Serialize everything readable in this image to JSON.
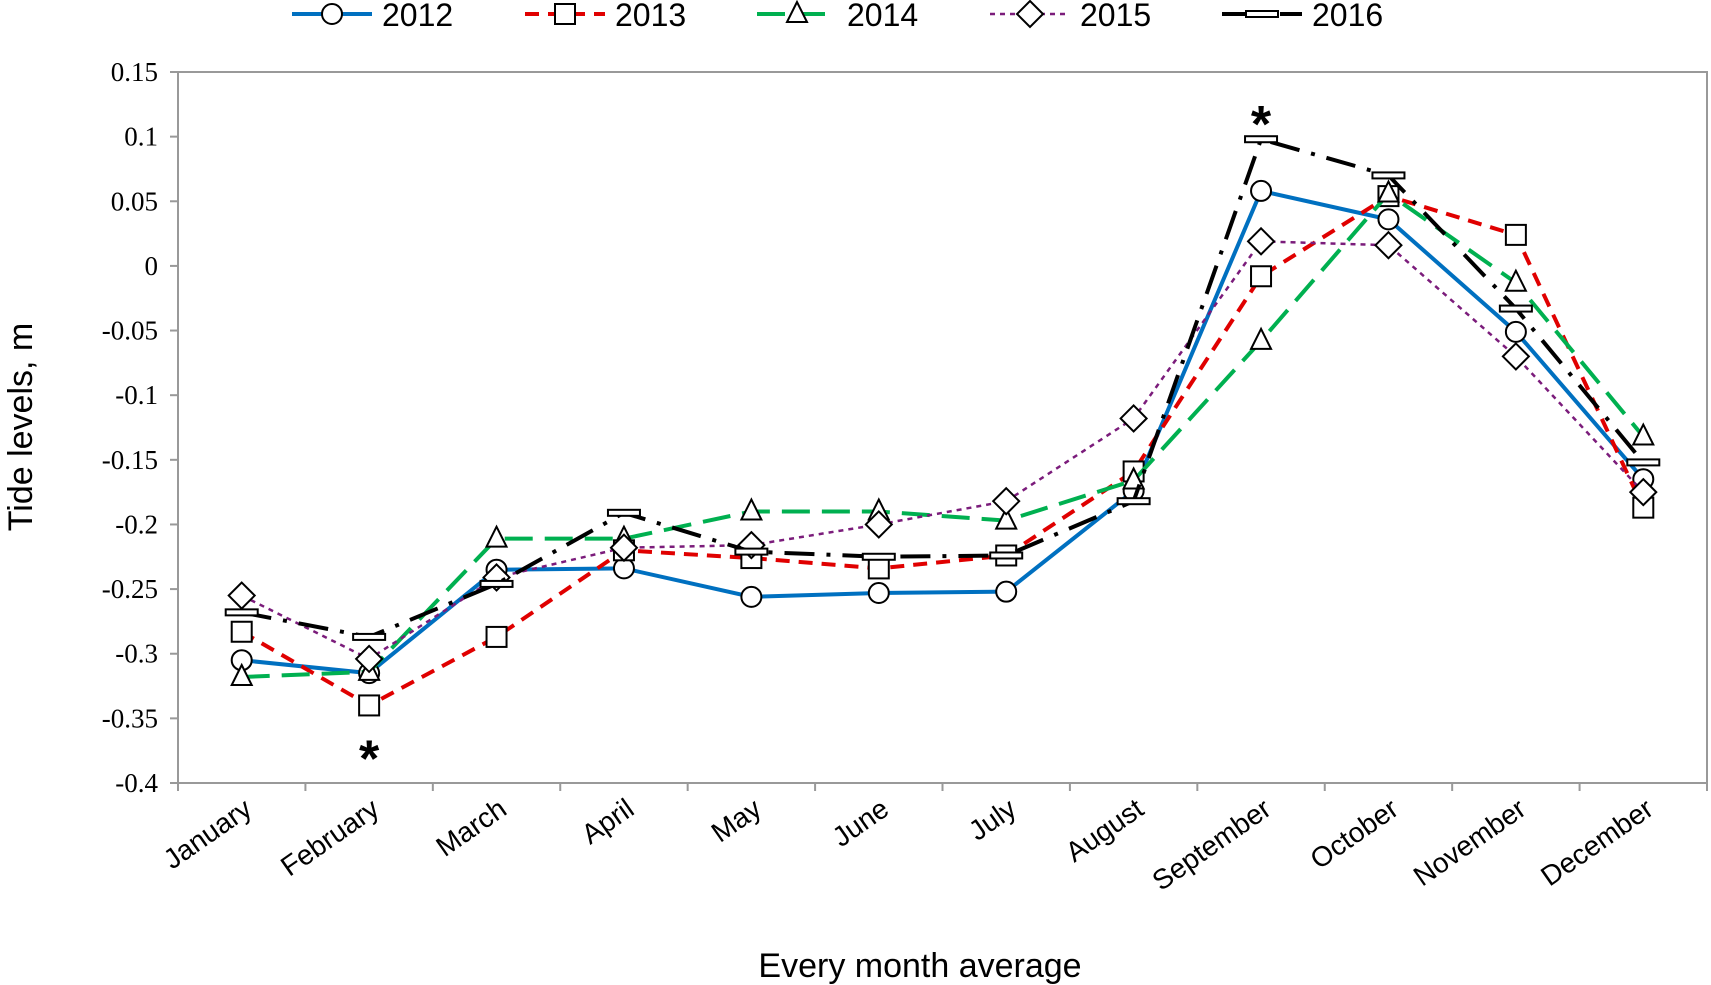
{
  "chart_data": {
    "type": "line",
    "title": "",
    "xlabel": "Every month average",
    "ylabel": "Tide levels, m",
    "ylim": [
      -0.4,
      0.15
    ],
    "yticks": [
      0.15,
      0.1,
      0.05,
      0,
      -0.05,
      -0.1,
      -0.15,
      -0.2,
      -0.25,
      -0.3,
      -0.35,
      -0.4
    ],
    "ytick_labels": [
      "0.15",
      "0.1",
      "0.05",
      "0",
      "-0.05",
      "-0.1",
      "-0.15",
      "-0.2",
      "-0.25",
      "-0.3",
      "-0.35",
      "-0.4"
    ],
    "grid": false,
    "legend_position": "top",
    "categories": [
      "January",
      "February",
      "March",
      "April",
      "May",
      "June",
      "July",
      "August",
      "September",
      "October",
      "November",
      "December"
    ],
    "series": [
      {
        "name": "2012",
        "color": "#0070C0",
        "marker": "circle",
        "dash": "solid",
        "values": [
          -0.305,
          -0.315,
          -0.235,
          -0.234,
          -0.256,
          -0.253,
          -0.252,
          -0.174,
          0.058,
          0.036,
          -0.051,
          -0.165
        ]
      },
      {
        "name": "2013",
        "color": "#E00000",
        "marker": "square",
        "dash": "dash",
        "values": [
          -0.283,
          -0.34,
          -0.287,
          -0.22,
          -0.226,
          -0.234,
          -0.224,
          -0.159,
          -0.008,
          0.054,
          0.024,
          -0.187
        ]
      },
      {
        "name": "2014",
        "color": "#00B050",
        "marker": "triangle",
        "dash": "longdash",
        "values": [
          -0.318,
          -0.314,
          -0.211,
          -0.211,
          -0.19,
          -0.19,
          -0.197,
          -0.166,
          -0.058,
          0.056,
          -0.013,
          -0.132
        ]
      },
      {
        "name": "2015",
        "color": "#7B1C7B",
        "marker": "diamond",
        "dash": "dot",
        "values": [
          -0.255,
          -0.304,
          -0.241,
          -0.218,
          -0.216,
          -0.2,
          -0.182,
          -0.118,
          0.019,
          0.016,
          -0.07,
          -0.175
        ]
      },
      {
        "name": "2016",
        "color": "#000000",
        "marker": "dash",
        "dash": "dashdot",
        "values": [
          -0.268,
          -0.287,
          -0.246,
          -0.191,
          -0.221,
          -0.225,
          -0.224,
          -0.182,
          0.098,
          0.07,
          -0.033,
          -0.152
        ]
      }
    ],
    "annotations": [
      {
        "text": "*",
        "category": "February",
        "y": -0.378
      },
      {
        "text": "*",
        "category": "September",
        "y": 0.113
      }
    ]
  }
}
